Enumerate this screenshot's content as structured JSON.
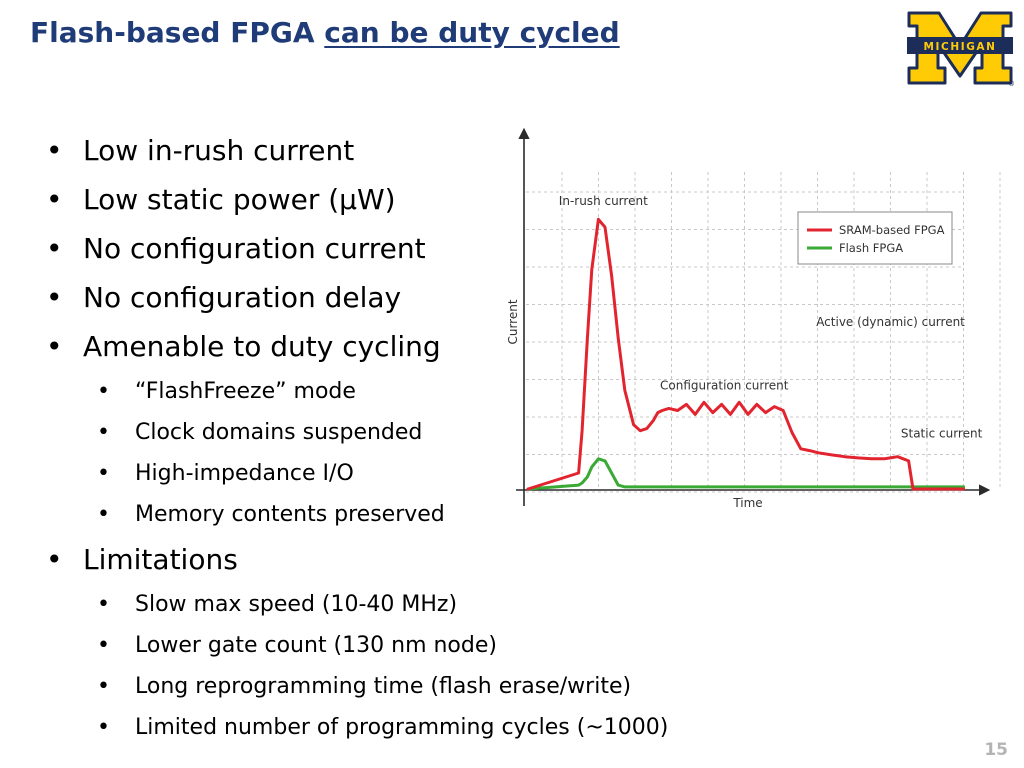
{
  "slide": {
    "title_plain": "Flash-based FPGA ",
    "title_underlined": "can be duty cycled",
    "logo_text": "MICHIGAN",
    "page_number": "15"
  },
  "bullets": [
    {
      "text": "Low in-rush current"
    },
    {
      "text": "Low static power (μW)"
    },
    {
      "text": "No configuration current"
    },
    {
      "text": "No configuration delay"
    },
    {
      "text": "Amenable to duty cycling",
      "sub": [
        "“FlashFreeze” mode",
        "Clock domains suspended",
        "High-impedance I/O",
        "Memory contents preserved"
      ]
    },
    {
      "text": "Limitations",
      "sub": [
        "Slow max speed (10-40 MHz)",
        "Lower gate count (130 nm node)",
        "Long reprogramming time (flash erase/write)",
        "Limited number of programming cycles (~1000)"
      ]
    }
  ],
  "chart_data": {
    "type": "line",
    "xlabel": "Time",
    "ylabel": "Current",
    "xlim": [
      0,
      100
    ],
    "ylim": [
      0,
      100
    ],
    "grid": true,
    "legend_position": "top-right",
    "series": [
      {
        "name": "SRAM-based FPGA",
        "color": "#e2242f",
        "x": [
          0,
          11.5,
          12.3,
          13.5,
          14.5,
          16,
          17.5,
          19,
          20.5,
          22,
          24,
          25.5,
          27,
          28.5,
          29.5,
          30.5,
          32,
          34,
          36,
          38,
          40,
          42,
          44,
          46,
          48,
          50,
          52,
          54,
          56,
          58,
          60,
          62,
          64,
          66,
          69,
          72,
          75,
          78,
          81,
          84,
          86.5,
          87.5,
          88.5,
          89.5,
          90.5,
          92,
          95,
          99
        ],
        "y": [
          0,
          5.3,
          19.3,
          50,
          72.7,
          89.3,
          86.7,
          70.7,
          50,
          32.7,
          21.3,
          19.3,
          20,
          22.7,
          25.3,
          26,
          26.7,
          26,
          28,
          24.7,
          28.7,
          25.3,
          28,
          24.7,
          28.7,
          24.7,
          28,
          25.3,
          27.3,
          26,
          18.7,
          13.3,
          12.7,
          12,
          11.3,
          10.7,
          10.3,
          10,
          10,
          10.7,
          9.3,
          0,
          0,
          0,
          0,
          0,
          0,
          0
        ]
      },
      {
        "name": "Flash FPGA",
        "color": "#3aaa35",
        "x": [
          0,
          11.5,
          12.3,
          13.5,
          14.5,
          16,
          17.5,
          19,
          20.5,
          22,
          24,
          25.5,
          27,
          28.5,
          29.5,
          30.5,
          32,
          34,
          36,
          38,
          40,
          42,
          44,
          46,
          48,
          50,
          52,
          54,
          56,
          58,
          60,
          62,
          64,
          66,
          69,
          72,
          75,
          78,
          81,
          84,
          86.5,
          87.5,
          88.5,
          89.5,
          90.5,
          92,
          95,
          99
        ],
        "y": [
          0,
          1.3,
          2,
          4,
          7.3,
          10,
          9.3,
          5.3,
          1.3,
          0.7,
          0.7,
          0.7,
          0.7,
          0.7,
          0.7,
          0.7,
          0.7,
          0.7,
          0.7,
          0.7,
          0.7,
          0.7,
          0.7,
          0.7,
          0.7,
          0.7,
          0.7,
          0.7,
          0.7,
          0.7,
          0.7,
          0.7,
          0.7,
          0.7,
          0.7,
          0.7,
          0.7,
          0.7,
          0.7,
          0.7,
          0.7,
          0.7,
          0.7,
          0.7,
          0.7,
          0.7,
          0.7,
          0.7
        ]
      }
    ],
    "annotations": [
      {
        "text": "In-rush current",
        "x": 7,
        "y": 94
      },
      {
        "text": "Configuration current",
        "x": 30,
        "y": 33
      },
      {
        "text": "Active (dynamic) current",
        "x": 65.5,
        "y": 54
      },
      {
        "text": "Static current",
        "x": 94,
        "y": 17
      }
    ]
  }
}
